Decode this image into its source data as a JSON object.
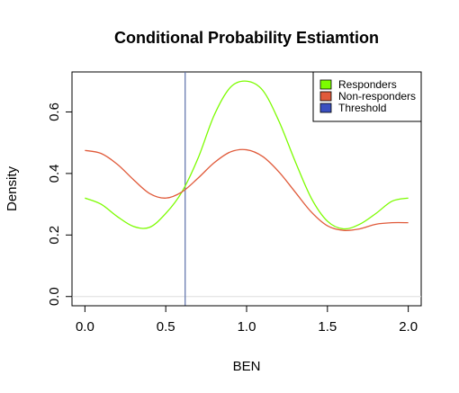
{
  "chart_data": {
    "type": "line",
    "title": "Conditional Probability Estiamtion",
    "xlabel": "BEN",
    "ylabel": "Density",
    "xlim": [
      -0.08,
      2.08
    ],
    "ylim": [
      -0.03,
      0.73
    ],
    "x_ticks": [
      "0.0",
      "0.5",
      "1.0",
      "1.5",
      "2.0"
    ],
    "y_ticks": [
      "0.0",
      "0.2",
      "0.4",
      "0.6"
    ],
    "x_tick_values": [
      0,
      0.5,
      1.0,
      1.5,
      2.0
    ],
    "y_tick_values": [
      0,
      0.2,
      0.4,
      0.6
    ],
    "threshold": 0.62,
    "baseline": 0,
    "legend_position": "top-right",
    "grid": false,
    "series": [
      {
        "name": "Responders",
        "color": "#7CFC00",
        "x": [
          0,
          0.1,
          0.2,
          0.3,
          0.4,
          0.5,
          0.6,
          0.7,
          0.8,
          0.9,
          1.0,
          1.1,
          1.2,
          1.3,
          1.4,
          1.5,
          1.6,
          1.7,
          1.8,
          1.9,
          2.0
        ],
        "y": [
          0.32,
          0.3,
          0.26,
          0.228,
          0.225,
          0.27,
          0.34,
          0.45,
          0.59,
          0.68,
          0.7,
          0.67,
          0.57,
          0.44,
          0.32,
          0.245,
          0.22,
          0.235,
          0.27,
          0.31,
          0.32
        ]
      },
      {
        "name": "Non-responders",
        "color": "#E05A3A",
        "x": [
          0,
          0.1,
          0.2,
          0.3,
          0.4,
          0.5,
          0.6,
          0.7,
          0.8,
          0.9,
          1.0,
          1.1,
          1.2,
          1.3,
          1.4,
          1.5,
          1.6,
          1.7,
          1.8,
          1.9,
          2.0
        ],
        "y": [
          0.475,
          0.465,
          0.43,
          0.38,
          0.335,
          0.32,
          0.34,
          0.385,
          0.435,
          0.47,
          0.477,
          0.455,
          0.405,
          0.34,
          0.275,
          0.23,
          0.215,
          0.22,
          0.235,
          0.24,
          0.24
        ]
      }
    ],
    "legend": [
      {
        "label": "Responders",
        "color": "#7CFC00"
      },
      {
        "label": "Non-responders",
        "color": "#E05A3A"
      },
      {
        "label": "Threshold",
        "color": "#3A4FC0"
      }
    ],
    "threshold_color": "#5A6FA8"
  }
}
